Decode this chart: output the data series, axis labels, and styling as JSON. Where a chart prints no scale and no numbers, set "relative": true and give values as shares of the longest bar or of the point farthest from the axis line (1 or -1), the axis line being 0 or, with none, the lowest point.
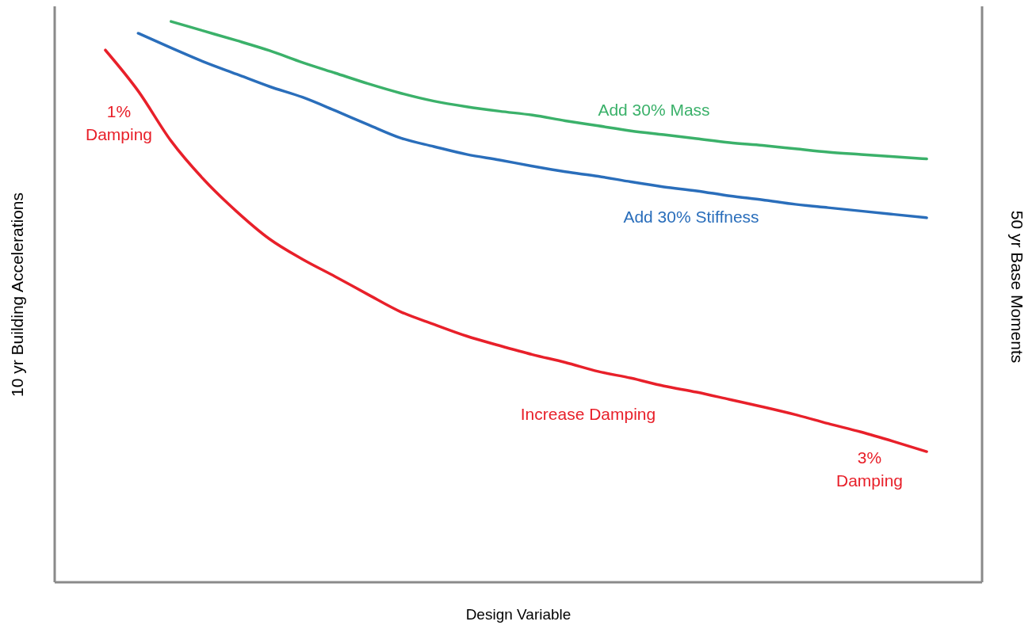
{
  "chart_data": {
    "type": "line",
    "relative": true,
    "xlabel": "Design Variable",
    "ylabel": "10 yr Building Accelerations",
    "y2label": "50 yr Base Moments",
    "categories": [
      null,
      null,
      null,
      null,
      null,
      null,
      null,
      null,
      null,
      null,
      null,
      null,
      null,
      null,
      null,
      null,
      null,
      null,
      null,
      null,
      null,
      null,
      null,
      null,
      null,
      null
    ],
    "series": [
      {
        "name": "Add 30% Mass",
        "color": "#3bb16a",
        "values": [
          null,
          null,
          1.0,
          0.983,
          0.966,
          0.948,
          0.927,
          0.908,
          0.889,
          0.872,
          0.858,
          0.848,
          0.84,
          0.833,
          0.823,
          0.814,
          0.805,
          0.798,
          0.791,
          0.784,
          0.779,
          0.773,
          0.767,
          0.763,
          0.759,
          0.755
        ]
      },
      {
        "name": "Add 30% Stiffness",
        "color": "#2a6ebb",
        "values": [
          null,
          0.979,
          0.953,
          0.928,
          0.906,
          0.884,
          0.865,
          0.841,
          0.816,
          0.792,
          0.777,
          0.763,
          0.753,
          0.742,
          0.732,
          0.724,
          0.714,
          0.705,
          0.698,
          0.689,
          0.682,
          0.674,
          0.668,
          0.662,
          0.656,
          0.65
        ]
      },
      {
        "name": "Increase Damping",
        "color": "#e8202a",
        "values": [
          0.949,
          0.876,
          0.787,
          0.718,
          0.661,
          0.612,
          0.576,
          0.545,
          0.513,
          0.482,
          0.46,
          0.439,
          0.422,
          0.406,
          0.392,
          0.376,
          0.364,
          0.35,
          0.339,
          0.326,
          0.313,
          0.299,
          0.283,
          0.268,
          0.251,
          0.233
        ]
      }
    ],
    "annotations": [
      "1% Damping",
      "3% Damping"
    ],
    "legend": false,
    "grid": false,
    "marker": "none",
    "line_style": "solid"
  }
}
